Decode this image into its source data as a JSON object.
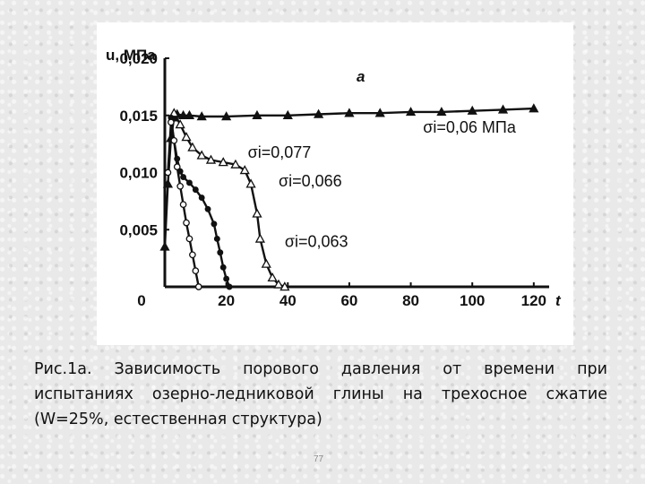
{
  "caption": "Рис.1а. Зависимость порового давления  от времени при испытаниях озерно-ледниковой глины на трехосное сжатие (W=25%, естественная структура)",
  "page_number": "77",
  "chart_data": {
    "type": "line",
    "panel_label": "a",
    "ylabel": "u, МПа",
    "xlabel": "t",
    "xlim": [
      0,
      125
    ],
    "ylim": [
      0,
      0.02
    ],
    "x_ticks": [
      {
        "value": 0,
        "label": "0"
      },
      {
        "value": 20,
        "label": "20"
      },
      {
        "value": 40,
        "label": "40"
      },
      {
        "value": 60,
        "label": "60"
      },
      {
        "value": 80,
        "label": "80"
      },
      {
        "value": 100,
        "label": "100"
      },
      {
        "value": 120,
        "label": "120"
      }
    ],
    "y_ticks": [
      {
        "value": 0.005,
        "label": "0,005"
      },
      {
        "value": 0.01,
        "label": "0,010"
      },
      {
        "value": 0.015,
        "label": "0,015"
      },
      {
        "value": 0.02,
        "label": "0,020"
      }
    ],
    "series": [
      {
        "name": "σi=0,06 МПа",
        "marker": "filled-triangle",
        "label_anchor": [
          84,
          0.0135
        ],
        "points": [
          [
            0,
            0.0035
          ],
          [
            1,
            0.009
          ],
          [
            2,
            0.013
          ],
          [
            3,
            0.0148
          ],
          [
            4,
            0.0151
          ],
          [
            6,
            0.015
          ],
          [
            8,
            0.015
          ],
          [
            12,
            0.0149
          ],
          [
            20,
            0.0149
          ],
          [
            30,
            0.015
          ],
          [
            40,
            0.015
          ],
          [
            50,
            0.0151
          ],
          [
            60,
            0.0152
          ],
          [
            70,
            0.0152
          ],
          [
            80,
            0.0153
          ],
          [
            90,
            0.0153
          ],
          [
            100,
            0.0154
          ],
          [
            110,
            0.0155
          ],
          [
            120,
            0.0156
          ]
        ]
      },
      {
        "name": "σi=0,077",
        "marker": "open-triangle",
        "label_anchor": [
          27,
          0.0113
        ],
        "points": [
          [
            3,
            0.0152
          ],
          [
            5,
            0.0142
          ],
          [
            7,
            0.0131
          ],
          [
            9,
            0.0122
          ],
          [
            12,
            0.0115
          ],
          [
            15,
            0.0111
          ],
          [
            19,
            0.0109
          ],
          [
            23,
            0.0107
          ],
          [
            26,
            0.0102
          ],
          [
            28,
            0.009
          ],
          [
            30,
            0.0064
          ],
          [
            31,
            0.0042
          ],
          [
            33,
            0.002
          ],
          [
            35,
            0.0008
          ],
          [
            37,
            0.0002
          ],
          [
            39,
            0.0
          ]
        ]
      },
      {
        "name": "σi=0,066",
        "marker": "filled-circle",
        "label_anchor": [
          37,
          0.0088
        ],
        "points": [
          [
            2,
            0.0148
          ],
          [
            3,
            0.0128
          ],
          [
            4,
            0.0112
          ],
          [
            5,
            0.0101
          ],
          [
            6,
            0.0096
          ],
          [
            8,
            0.0091
          ],
          [
            10,
            0.0085
          ],
          [
            12,
            0.0078
          ],
          [
            14,
            0.0068
          ],
          [
            16,
            0.0055
          ],
          [
            17,
            0.0042
          ],
          [
            18,
            0.003
          ],
          [
            19,
            0.0017
          ],
          [
            20,
            0.0007
          ],
          [
            21,
            0.0
          ]
        ]
      },
      {
        "name": "σi=0,063",
        "marker": "open-circle",
        "label_anchor": [
          39,
          0.0035
        ],
        "points": [
          [
            1,
            0.01
          ],
          [
            2,
            0.0144
          ],
          [
            3,
            0.0128
          ],
          [
            4,
            0.0105
          ],
          [
            5,
            0.0088
          ],
          [
            6,
            0.0072
          ],
          [
            7,
            0.0056
          ],
          [
            8,
            0.0042
          ],
          [
            9,
            0.0028
          ],
          [
            10,
            0.0014
          ],
          [
            11,
            0.0
          ]
        ]
      }
    ]
  }
}
